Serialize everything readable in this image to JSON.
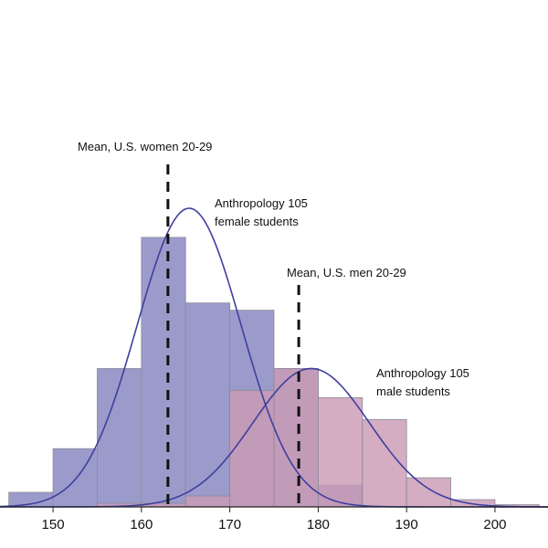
{
  "chart_data": {
    "type": "bar",
    "x_tick_labels": [
      "150",
      "160",
      "170",
      "180",
      "190",
      "200"
    ],
    "xlim": [
      144,
      206
    ],
    "ylim": [
      0,
      41
    ],
    "bin_width": 5,
    "series": [
      {
        "bins": [
          {
            "x0": 145,
            "y": 2
          },
          {
            "x0": 150,
            "y": 8
          },
          {
            "x0": 155,
            "y": 19
          },
          {
            "x0": 160,
            "y": 37
          },
          {
            "x0": 165,
            "y": 28
          },
          {
            "x0": 170,
            "y": 27
          },
          {
            "x0": 175,
            "y": 19
          },
          {
            "x0": 180,
            "y": 3
          }
        ],
        "curve": {
          "mean": 165.4,
          "sd": 5.9,
          "peak": 41
        },
        "color": "#9b9bcb"
      },
      {
        "bins": [
          {
            "x0": 155,
            "y": 0.5
          },
          {
            "x0": 160,
            "y": 0.5
          },
          {
            "x0": 165,
            "y": 1.5
          },
          {
            "x0": 170,
            "y": 16
          },
          {
            "x0": 175,
            "y": 19
          },
          {
            "x0": 180,
            "y": 15
          },
          {
            "x0": 185,
            "y": 12
          },
          {
            "x0": 190,
            "y": 4
          },
          {
            "x0": 195,
            "y": 1
          },
          {
            "x0": 200,
            "y": 0.3
          }
        ],
        "curve": {
          "mean": 179.2,
          "sd": 6.6,
          "peak": 19
        },
        "color": "#cb9bb5"
      }
    ],
    "curve_color": "#3f3f9f",
    "reference_lines": [
      {
        "x": 163.0,
        "label": "Mean, U.S. women 20-29"
      },
      {
        "x": 177.8,
        "label": "Mean, U.S. men 20-29"
      }
    ],
    "annotations": [
      {
        "line1": "Anthropology 105",
        "line2": "female students"
      },
      {
        "line1": "Anthropology 105",
        "line2": "male students"
      }
    ]
  }
}
